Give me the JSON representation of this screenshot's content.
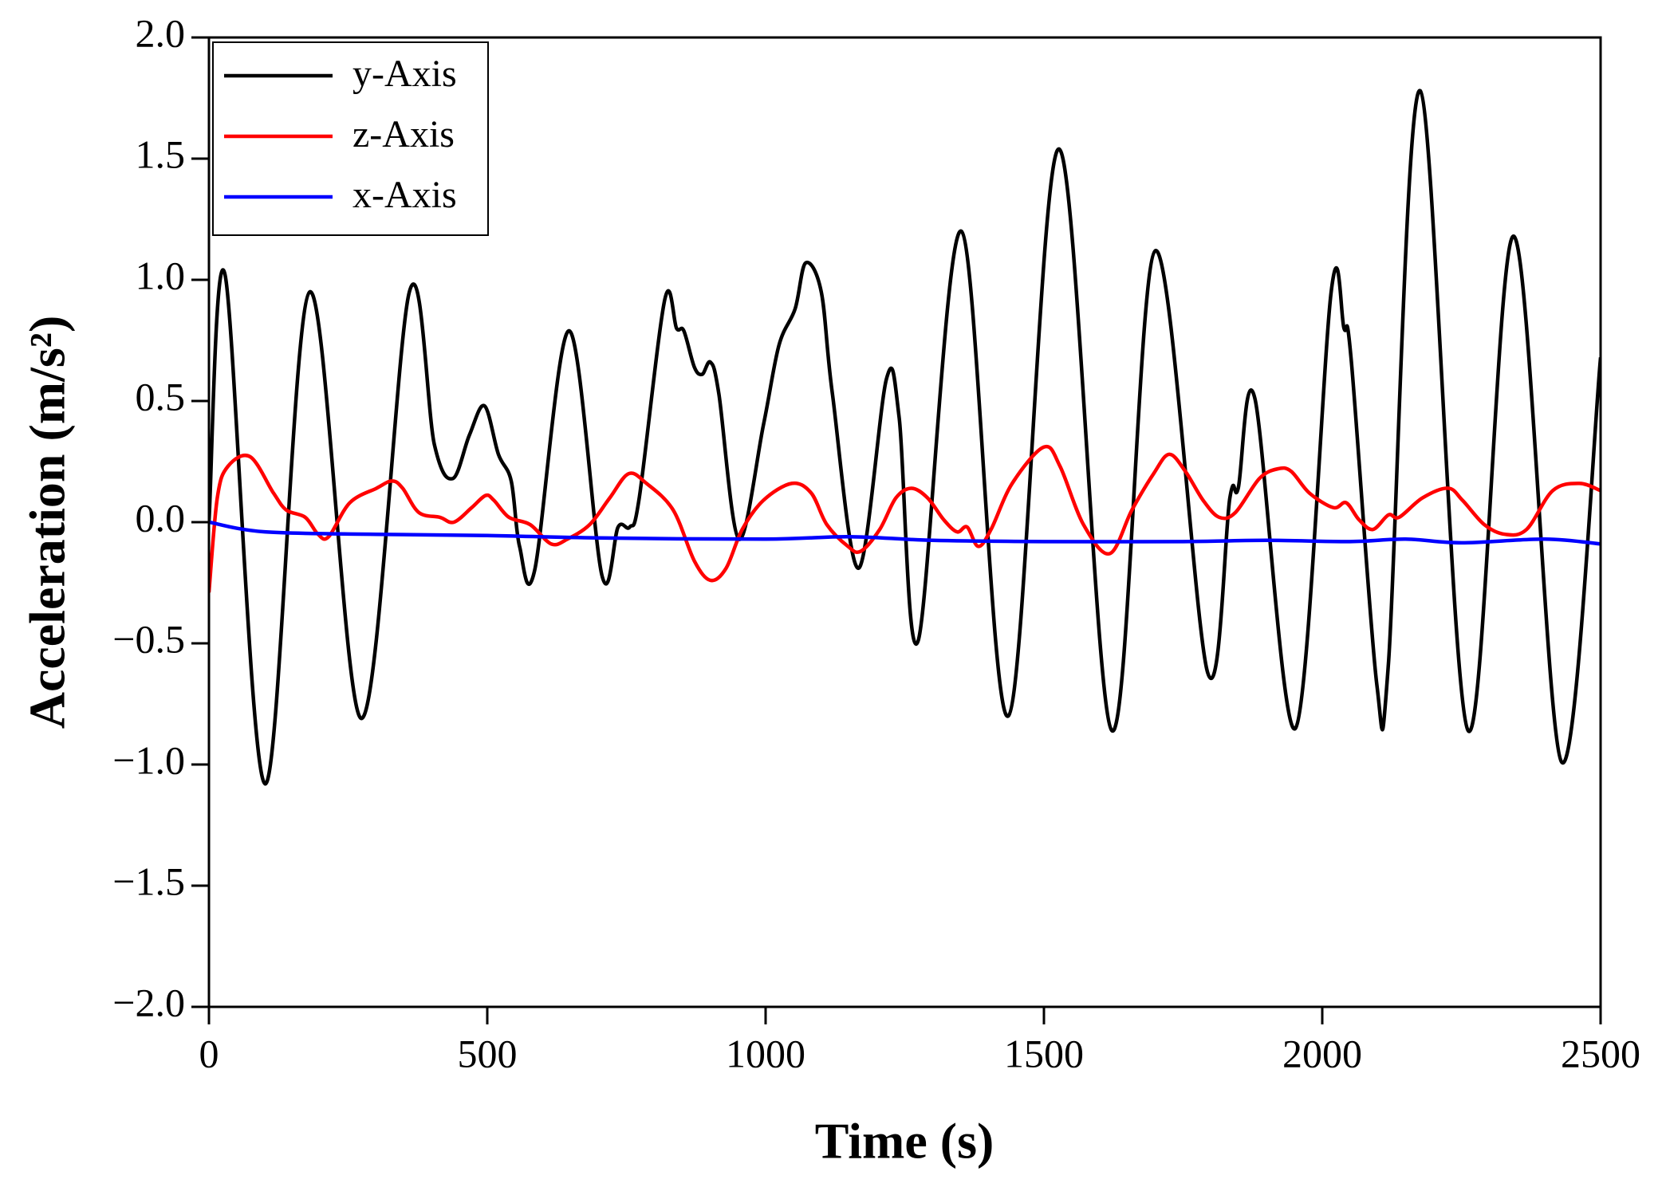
{
  "chart_data": {
    "type": "line",
    "xlabel": "Time (s)",
    "ylabel": "Acceleration (m/s²)",
    "xlim": [
      0,
      2500
    ],
    "xticks": [
      0,
      500,
      1000,
      1500,
      2000,
      2500
    ],
    "ylim": [
      -2,
      2
    ],
    "yticks": [
      {
        "value": -2,
        "label": "−2.0"
      },
      {
        "value": -1.5,
        "label": "−1.5"
      },
      {
        "value": -1,
        "label": "−1.0"
      },
      {
        "value": -0.5,
        "label": "−0.5"
      },
      {
        "value": 0,
        "label": "0.0"
      },
      {
        "value": 0.5,
        "label": "0.5"
      },
      {
        "value": 1,
        "label": "1.0"
      },
      {
        "value": 1.5,
        "label": "1.5"
      },
      {
        "value": 2,
        "label": "2.0"
      }
    ],
    "legend": "upper left",
    "series": [
      {
        "name": "y-Axis",
        "color": "#000000",
        "x": [
          0,
          29,
          101,
          181,
          274,
          360,
          405,
          438,
          468,
          495,
          520,
          543,
          558,
          585,
          647,
          706,
          735,
          756,
          773,
          819,
          840,
          853,
          872,
          886,
          901,
          916,
          952,
          996,
          1024,
          1053,
          1072,
          1100,
          1120,
          1167,
          1217,
          1240,
          1274,
          1352,
          1436,
          1527,
          1622,
          1700,
          1794,
          1834,
          1849,
          1879,
          1952,
          2016,
          2039,
          2052,
          2098,
          2119,
          2176,
          2262,
          2344,
          2430,
          2500
        ],
        "values": [
          0.0,
          1.02,
          -1.08,
          0.95,
          -0.81,
          0.95,
          0.32,
          0.18,
          0.36,
          0.48,
          0.28,
          0.17,
          -0.1,
          -0.2,
          0.79,
          -0.22,
          -0.02,
          -0.02,
          0.1,
          0.92,
          0.8,
          0.79,
          0.64,
          0.61,
          0.66,
          0.53,
          -0.07,
          0.4,
          0.73,
          0.88,
          1.07,
          0.95,
          0.53,
          -0.19,
          0.59,
          0.43,
          -0.49,
          1.2,
          -0.8,
          1.54,
          -0.86,
          1.12,
          -0.62,
          0.1,
          0.14,
          0.51,
          -0.85,
          0.95,
          0.8,
          0.67,
          -0.67,
          -0.58,
          1.78,
          -0.86,
          1.18,
          -0.99,
          0.68
        ]
      },
      {
        "name": "z-Axis",
        "color": "#ff0000",
        "x": [
          0,
          15,
          34,
          74,
          116,
          139,
          173,
          196,
          215,
          253,
          301,
          329,
          348,
          377,
          415,
          440,
          472,
          497,
          512,
          539,
          577,
          615,
          644,
          684,
          720,
          754,
          786,
          834,
          872,
          901,
          929,
          958,
          996,
          1047,
          1082,
          1110,
          1148,
          1171,
          1205,
          1234,
          1262,
          1291,
          1320,
          1344,
          1362,
          1382,
          1405,
          1443,
          1500,
          1529,
          1571,
          1618,
          1658,
          1697,
          1725,
          1754,
          1786,
          1815,
          1844,
          1887,
          1920,
          1944,
          1977,
          2020,
          2043,
          2066,
          2091,
          2119,
          2138,
          2180,
          2226,
          2252,
          2291,
          2328,
          2367,
          2414,
          2462,
          2500
        ],
        "values": [
          -0.29,
          0.1,
          0.23,
          0.27,
          0.12,
          0.05,
          0.02,
          -0.05,
          -0.06,
          0.08,
          0.14,
          0.17,
          0.14,
          0.04,
          0.02,
          0.0,
          0.06,
          0.11,
          0.09,
          0.02,
          -0.01,
          -0.09,
          -0.07,
          -0.01,
          0.1,
          0.2,
          0.16,
          0.05,
          -0.16,
          -0.24,
          -0.19,
          -0.03,
          0.09,
          0.16,
          0.12,
          -0.01,
          -0.1,
          -0.12,
          -0.03,
          0.1,
          0.14,
          0.1,
          0.01,
          -0.04,
          -0.02,
          -0.1,
          -0.03,
          0.16,
          0.31,
          0.23,
          -0.01,
          -0.13,
          0.05,
          0.2,
          0.28,
          0.21,
          0.09,
          0.02,
          0.04,
          0.18,
          0.22,
          0.21,
          0.12,
          0.06,
          0.08,
          0.01,
          -0.03,
          0.03,
          0.02,
          0.1,
          0.14,
          0.09,
          -0.01,
          -0.05,
          -0.03,
          0.13,
          0.16,
          0.13
        ]
      },
      {
        "name": "x-Axis",
        "color": "#0000ff",
        "x": [
          0,
          100,
          300,
          500,
          700,
          1000,
          1150,
          1300,
          1500,
          1750,
          1900,
          2050,
          2150,
          2250,
          2400,
          2500
        ],
        "values": [
          0.0,
          -0.04,
          -0.05,
          -0.055,
          -0.065,
          -0.07,
          -0.06,
          -0.075,
          -0.08,
          -0.08,
          -0.075,
          -0.08,
          -0.07,
          -0.085,
          -0.07,
          -0.09
        ]
      }
    ]
  }
}
